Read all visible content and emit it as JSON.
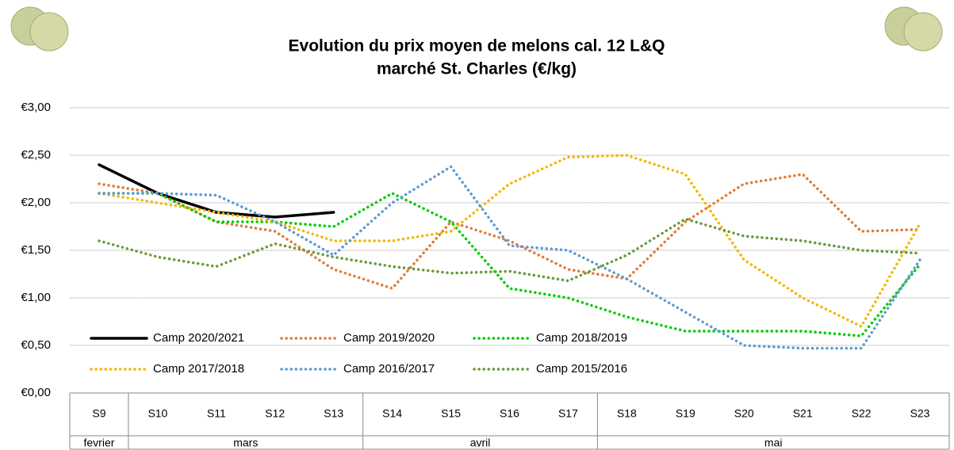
{
  "chart_data": {
    "type": "line",
    "title": [
      "Evolution du prix moyen de melons cal. 12 L&Q",
      "marché St. Charles (€/kg)"
    ],
    "categories": [
      "S9",
      "S10",
      "S11",
      "S12",
      "S13",
      "S14",
      "S15",
      "S16",
      "S17",
      "S18",
      "S19",
      "S20",
      "S21",
      "S22",
      "S23"
    ],
    "months": [
      {
        "name": "fevrier",
        "weeks": 1
      },
      {
        "name": "mars",
        "weeks": 4
      },
      {
        "name": "avril",
        "weeks": 4
      },
      {
        "name": "mai",
        "weeks": 6
      }
    ],
    "ylim": [
      0,
      3
    ],
    "yticks": [
      {
        "value": 0,
        "label": "€0,00"
      },
      {
        "value": 0.5,
        "label": "€0,50"
      },
      {
        "value": 1,
        "label": "€1,00"
      },
      {
        "value": 1.5,
        "label": "€1,50"
      },
      {
        "value": 2,
        "label": "€2,00"
      },
      {
        "value": 2.5,
        "label": "€2,50"
      },
      {
        "value": 3,
        "label": "€3,00"
      }
    ],
    "grid": true,
    "series": [
      {
        "name": "Camp 2020/2021",
        "color": "#000000",
        "dotted": false,
        "values": [
          2.4,
          2.1,
          1.9,
          1.85,
          1.9,
          null,
          null,
          null,
          null,
          null,
          null,
          null,
          null,
          null,
          null
        ]
      },
      {
        "name": "Camp 2019/2020",
        "color": "#e07b39",
        "dotted": true,
        "values": [
          2.2,
          2.1,
          1.8,
          1.7,
          1.3,
          1.1,
          1.8,
          1.6,
          1.3,
          1.2,
          1.8,
          2.2,
          2.3,
          1.7,
          1.72
        ]
      },
      {
        "name": "Camp 2018/2019",
        "color": "#00cc00",
        "dotted": true,
        "values": [
          2.1,
          2.1,
          1.8,
          1.8,
          1.75,
          2.1,
          1.8,
          1.1,
          1.0,
          0.8,
          0.65,
          0.65,
          0.65,
          0.6,
          1.35
        ]
      },
      {
        "name": "Camp 2017/2018",
        "color": "#f2b705",
        "dotted": true,
        "values": [
          2.1,
          2.0,
          1.9,
          1.8,
          1.6,
          1.6,
          1.7,
          2.2,
          2.48,
          2.5,
          2.3,
          1.4,
          1.0,
          0.7,
          1.78
        ]
      },
      {
        "name": "Camp 2016/2017",
        "color": "#5b9bd5",
        "dotted": true,
        "values": [
          2.1,
          2.1,
          2.08,
          1.8,
          1.45,
          2.0,
          2.38,
          1.55,
          1.5,
          1.2,
          0.85,
          0.5,
          0.47,
          0.47,
          1.4
        ]
      },
      {
        "name": "Camp 2015/2016",
        "color": "#6a9a3a",
        "dotted": true,
        "values": [
          1.6,
          1.43,
          1.33,
          1.57,
          1.43,
          1.33,
          1.26,
          1.28,
          1.18,
          1.45,
          1.83,
          1.65,
          1.6,
          1.5,
          1.47
        ]
      }
    ]
  }
}
